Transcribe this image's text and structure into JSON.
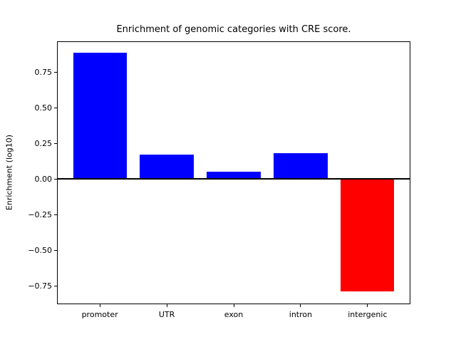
{
  "chart_data": {
    "type": "bar",
    "title": "Enrichment of genomic categories with CRE score.",
    "xlabel": "",
    "ylabel": "Enrichment (log10)",
    "categories": [
      "promoter",
      "UTR",
      "exon",
      "intron",
      "intergenic"
    ],
    "values": [
      0.89,
      0.17,
      0.05,
      0.18,
      -0.79
    ],
    "bar_colors": [
      "#0000ff",
      "#0000ff",
      "#0000ff",
      "#0000ff",
      "#ff0000"
    ],
    "positive_color": "#0000ff",
    "negative_color": "#ff0000",
    "yticks": [
      0.75,
      0.5,
      0.25,
      0,
      -0.25,
      -0.5,
      -0.75
    ],
    "ytick_labels": [
      "0.75",
      "0.50",
      "0.25",
      "0.00",
      "−0.25",
      "−0.50",
      "−0.75"
    ],
    "ylim": [
      -0.88,
      0.97
    ],
    "xlim": [
      -0.64,
      4.64
    ],
    "bar_width": 0.8,
    "zero_line": true,
    "zero_line_color": "#000000",
    "grid": false,
    "legend": null,
    "background_color": "#ffffff",
    "axis_color": "#000000"
  }
}
